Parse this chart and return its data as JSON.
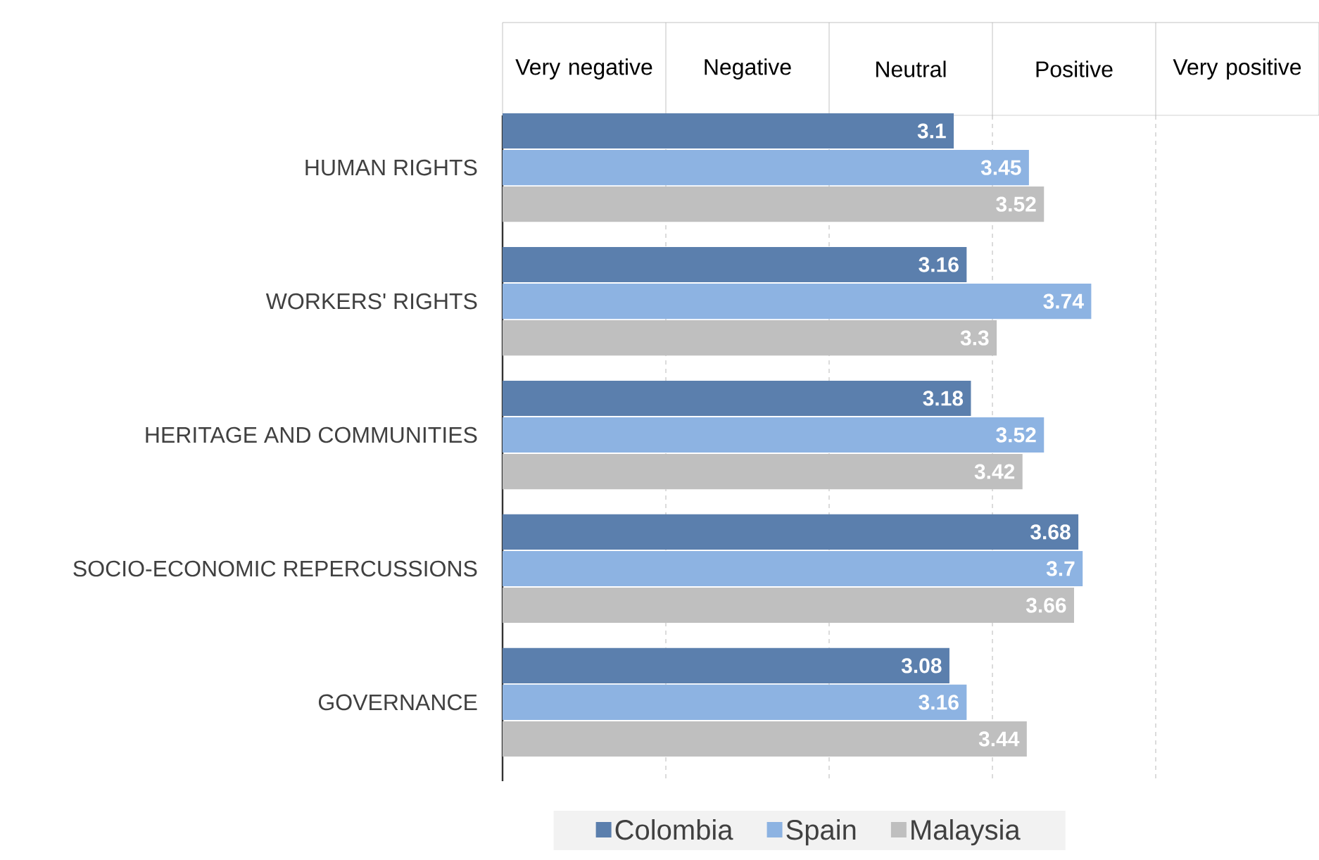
{
  "chart_data": {
    "type": "bar",
    "orientation": "horizontal",
    "categories": [
      "HUMAN RIGHTS",
      "WORKERS' RIGHTS",
      "HERITAGE AND COMMUNITIES",
      "SOCIO-ECONOMIC REPERCUSSIONS",
      "GOVERNANCE"
    ],
    "series": [
      {
        "name": "Colombia",
        "color": "#5b7fad",
        "values": [
          3.1,
          3.16,
          3.18,
          3.68,
          3.08
        ]
      },
      {
        "name": "Spain",
        "color": "#8db3e2",
        "values": [
          3.45,
          3.74,
          3.52,
          3.7,
          3.16
        ]
      },
      {
        "name": "Malaysia",
        "color": "#bfbfbf",
        "values": [
          3.52,
          3.3,
          3.42,
          3.66,
          3.44
        ]
      }
    ],
    "xlim": [
      1,
      4.8
    ],
    "xticks": [
      {
        "value": 1.76,
        "label": null
      },
      {
        "value": 2.52,
        "label": null
      },
      {
        "value": 3.28,
        "label": null
      },
      {
        "value": 4.04,
        "label": null
      }
    ],
    "annotations": [
      "Very negative",
      "Negative",
      "Neutral",
      "Positive",
      "Very positive"
    ],
    "grid": "x",
    "data_labels": true,
    "legend": "bottom"
  }
}
